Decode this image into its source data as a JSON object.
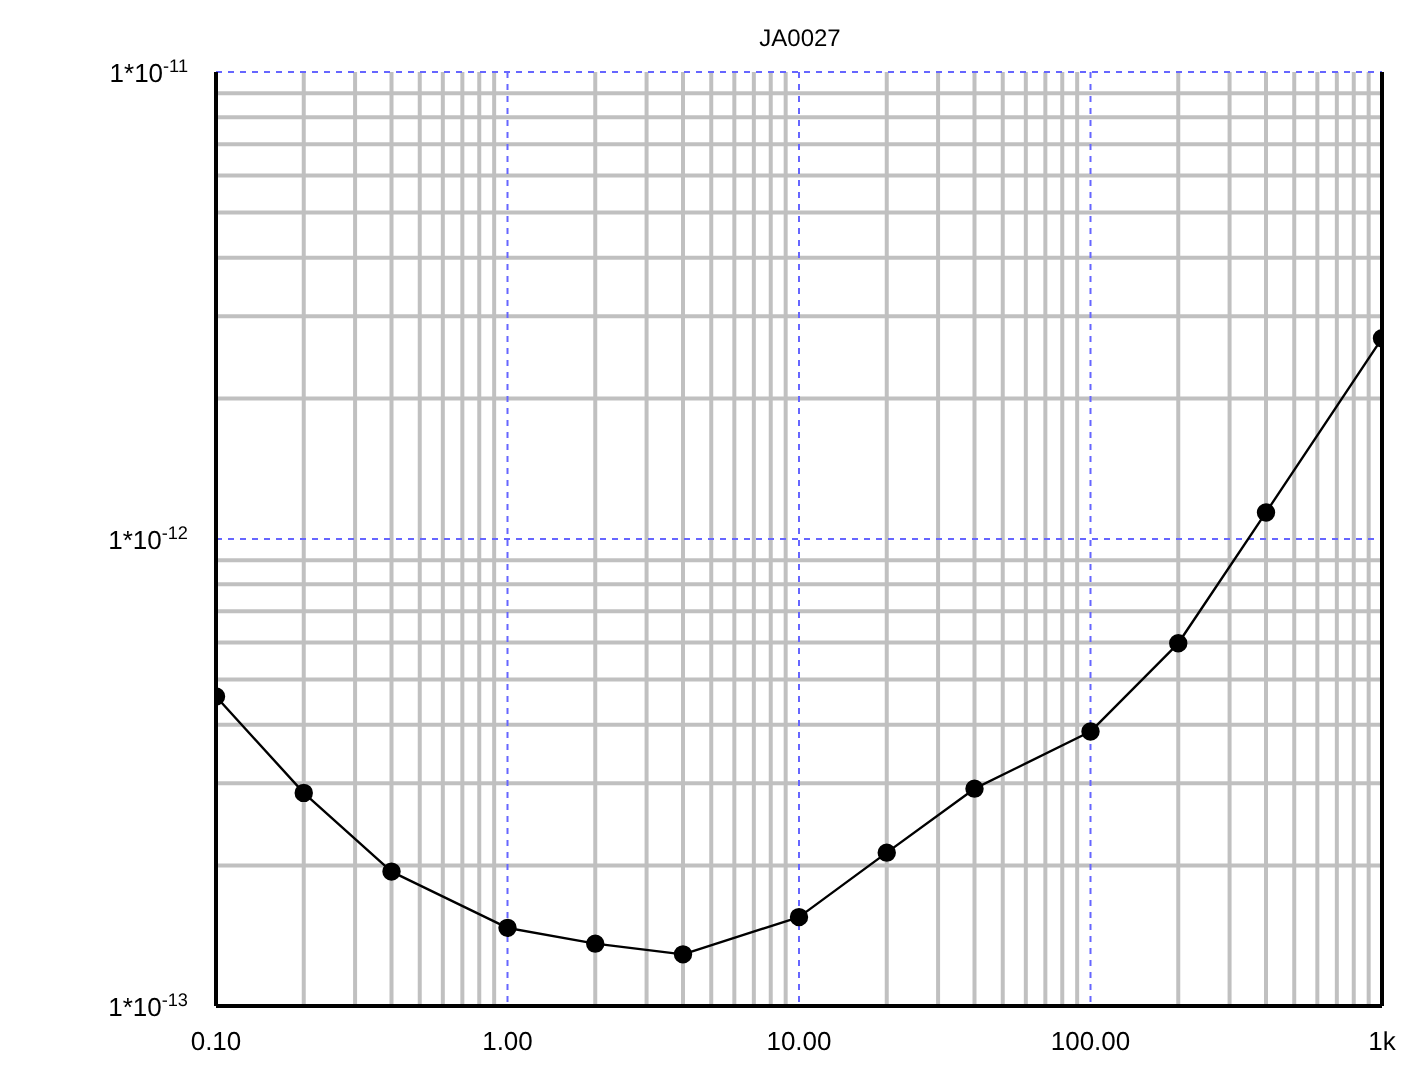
{
  "chart_data": {
    "type": "line",
    "title": "JA0027",
    "log": "xy",
    "grid": true,
    "marker": "circle",
    "line_style": "solid",
    "x": [
      0.1,
      0.2,
      0.4,
      1,
      2,
      4,
      10,
      20,
      40,
      100,
      200,
      400,
      1000
    ],
    "series": [
      {
        "color": "#000000",
        "values": [
          4.6e-13,
          2.86e-13,
          1.94e-13,
          1.47e-13,
          1.36e-13,
          1.29e-13,
          1.55e-13,
          2.13e-13,
          2.92e-13,
          3.87e-13,
          5.98e-13,
          1.14e-12,
          2.69e-12
        ]
      }
    ],
    "xlim": [
      0.1,
      1000
    ],
    "ylim": [
      1e-13,
      1e-11
    ],
    "xticks": [
      {
        "value": 0.1,
        "label": "0.10"
      },
      {
        "value": 0.2,
        "label": null
      },
      {
        "value": 0.3,
        "label": null
      },
      {
        "value": 0.4,
        "label": null
      },
      {
        "value": 0.5,
        "label": null
      },
      {
        "value": 0.6,
        "label": null
      },
      {
        "value": 0.7,
        "label": null
      },
      {
        "value": 0.8,
        "label": null
      },
      {
        "value": 0.9,
        "label": null
      },
      {
        "value": 1,
        "label": "1.00"
      },
      {
        "value": 2,
        "label": null
      },
      {
        "value": 3,
        "label": null
      },
      {
        "value": 4,
        "label": null
      },
      {
        "value": 5,
        "label": null
      },
      {
        "value": 6,
        "label": null
      },
      {
        "value": 7,
        "label": null
      },
      {
        "value": 8,
        "label": null
      },
      {
        "value": 9,
        "label": null
      },
      {
        "value": 10,
        "label": "10.00"
      },
      {
        "value": 20,
        "label": null
      },
      {
        "value": 30,
        "label": null
      },
      {
        "value": 40,
        "label": null
      },
      {
        "value": 50,
        "label": null
      },
      {
        "value": 60,
        "label": null
      },
      {
        "value": 70,
        "label": null
      },
      {
        "value": 80,
        "label": null
      },
      {
        "value": 90,
        "label": null
      },
      {
        "value": 100,
        "label": "100.00"
      },
      {
        "value": 200,
        "label": null
      },
      {
        "value": 300,
        "label": null
      },
      {
        "value": 400,
        "label": null
      },
      {
        "value": 500,
        "label": null
      },
      {
        "value": 600,
        "label": null
      },
      {
        "value": 700,
        "label": null
      },
      {
        "value": 800,
        "label": null
      },
      {
        "value": 900,
        "label": null
      },
      {
        "value": 1000,
        "label": "1k"
      }
    ],
    "yticks": [
      {
        "value": 1e-13,
        "label": "1*10$^{-13}$"
      },
      {
        "value": 2e-13,
        "label": null
      },
      {
        "value": 3e-13,
        "label": null
      },
      {
        "value": 4e-13,
        "label": null
      },
      {
        "value": 5e-13,
        "label": null
      },
      {
        "value": 6e-13,
        "label": null
      },
      {
        "value": 7e-13,
        "label": null
      },
      {
        "value": 8e-13,
        "label": null
      },
      {
        "value": 9e-13,
        "label": null
      },
      {
        "value": 1e-12,
        "label": "1*10$^{-12}$"
      },
      {
        "value": 2e-12,
        "label": null
      },
      {
        "value": 3e-12,
        "label": null
      },
      {
        "value": 4e-12,
        "label": null
      },
      {
        "value": 5e-12,
        "label": null
      },
      {
        "value": 6e-12,
        "label": null
      },
      {
        "value": 7e-12,
        "label": null
      },
      {
        "value": 8e-12,
        "label": null
      },
      {
        "value": 9e-12,
        "label": null
      },
      {
        "value": 1e-11,
        "label": "1*10$^{-11}$"
      }
    ]
  }
}
